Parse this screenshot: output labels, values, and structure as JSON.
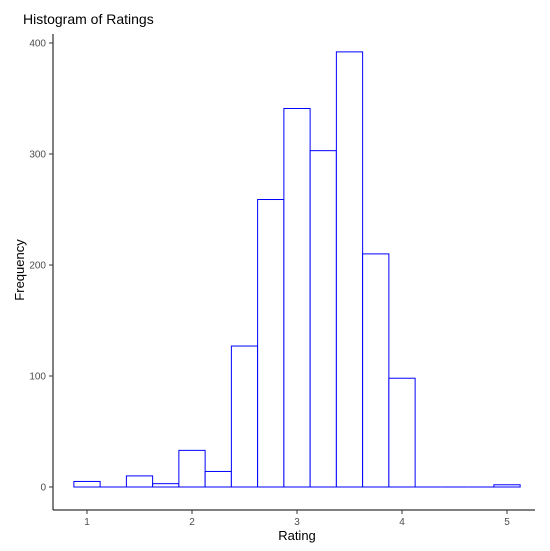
{
  "chart_data": {
    "type": "bar",
    "title": "Histogram of Ratings",
    "xlabel": "Rating",
    "ylabel": "Frequency",
    "bar_color": "#0000ff",
    "bar_fill": "#ffffff",
    "bin_width": 0.25,
    "bins": [
      {
        "start": 0.875,
        "end": 1.125,
        "count": 5
      },
      {
        "start": 1.125,
        "end": 1.375,
        "count": 0
      },
      {
        "start": 1.375,
        "end": 1.625,
        "count": 10
      },
      {
        "start": 1.625,
        "end": 1.875,
        "count": 3
      },
      {
        "start": 1.875,
        "end": 2.125,
        "count": 33
      },
      {
        "start": 2.125,
        "end": 2.375,
        "count": 14
      },
      {
        "start": 2.375,
        "end": 2.625,
        "count": 127
      },
      {
        "start": 2.625,
        "end": 2.875,
        "count": 259
      },
      {
        "start": 2.875,
        "end": 3.125,
        "count": 341
      },
      {
        "start": 3.125,
        "end": 3.375,
        "count": 303
      },
      {
        "start": 3.375,
        "end": 3.625,
        "count": 392
      },
      {
        "start": 3.625,
        "end": 3.875,
        "count": 210
      },
      {
        "start": 3.875,
        "end": 4.125,
        "count": 98
      },
      {
        "start": 4.125,
        "end": 4.375,
        "count": 0
      },
      {
        "start": 4.375,
        "end": 4.625,
        "count": 0
      },
      {
        "start": 4.625,
        "end": 4.875,
        "count": 0
      },
      {
        "start": 4.875,
        "end": 5.125,
        "count": 2
      }
    ],
    "xlim": [
      0.75,
      5.25
    ],
    "ylim": [
      0,
      400
    ],
    "x_ticks": [
      "1",
      "2",
      "3",
      "4",
      "5"
    ],
    "y_ticks": [
      "0",
      "100",
      "200",
      "300",
      "400"
    ],
    "grid": false,
    "legend": "none"
  }
}
